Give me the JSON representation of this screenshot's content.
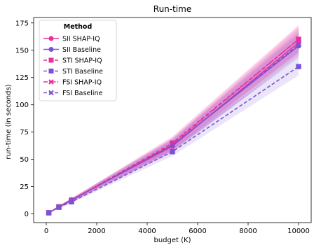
{
  "chart_data": {
    "type": "line",
    "title": "Run-time",
    "xlabel": "budget (K)",
    "ylabel": "run-time (in seconds)",
    "x": [
      100,
      500,
      1000,
      5000,
      10000
    ],
    "xlim": [
      -500,
      10500
    ],
    "ylim": [
      -8,
      180
    ],
    "xticks": [
      0,
      2000,
      4000,
      6000,
      8000,
      10000
    ],
    "yticks": [
      0,
      25,
      50,
      75,
      100,
      125,
      150,
      175
    ],
    "legend": {
      "title": "Method",
      "placement": "top-left"
    },
    "grid": false,
    "series": [
      {
        "name": "SII SHAP-IQ",
        "values": [
          1.0,
          6.5,
          13.0,
          62.0,
          157.0
        ],
        "band": [
          [
            0.5,
            1.5
          ],
          [
            5.5,
            7.5
          ],
          [
            11.5,
            14.5
          ],
          [
            56,
            68
          ],
          [
            145,
            170
          ]
        ],
        "color": "#e8309a",
        "linestyle": "solid",
        "marker": "circle"
      },
      {
        "name": "SII Baseline",
        "values": [
          1.0,
          6.5,
          12.5,
          63.0,
          154.0
        ],
        "band": [
          [
            0.5,
            1.5
          ],
          [
            5.5,
            7.5
          ],
          [
            11.0,
            14.0
          ],
          [
            58,
            68
          ],
          [
            143,
            165
          ]
        ],
        "color": "#7b52d6",
        "linestyle": "solid",
        "marker": "circle"
      },
      {
        "name": "STI SHAP-IQ",
        "values": [
          1.0,
          6.5,
          12.5,
          65.0,
          160.0
        ],
        "band": [
          [
            0.5,
            1.5
          ],
          [
            5.5,
            7.5
          ],
          [
            11.0,
            14.0
          ],
          [
            59,
            71
          ],
          [
            148,
            173
          ]
        ],
        "color": "#e8309a",
        "linestyle": "dashed",
        "marker": "square"
      },
      {
        "name": "STI Baseline",
        "values": [
          1.0,
          6.0,
          11.0,
          57.0,
          135.0
        ],
        "band": [
          [
            0.5,
            1.5
          ],
          [
            5.0,
            7.0
          ],
          [
            10.0,
            12.0
          ],
          [
            53,
            61
          ],
          [
            127,
            143
          ]
        ],
        "color": "#7b52d6",
        "linestyle": "dashed",
        "marker": "square"
      },
      {
        "name": "FSI SHAP-IQ",
        "values": [
          1.0,
          6.5,
          12.5,
          64.0,
          160.0
        ],
        "band": [
          [
            0.5,
            1.5
          ],
          [
            5.5,
            7.5
          ],
          [
            11.0,
            14.0
          ],
          [
            58,
            70
          ],
          [
            148,
            172
          ]
        ],
        "color": "#e8309a",
        "linestyle": "dashdot",
        "marker": "x"
      },
      {
        "name": "FSI Baseline",
        "values": [
          1.0,
          6.5,
          12.5,
          63.0,
          155.0
        ],
        "band": [
          [
            0.5,
            1.5
          ],
          [
            5.5,
            7.5
          ],
          [
            11.0,
            14.0
          ],
          [
            57,
            69
          ],
          [
            143,
            167
          ]
        ],
        "color": "#7b52d6",
        "linestyle": "dashed",
        "marker": "x"
      }
    ]
  }
}
